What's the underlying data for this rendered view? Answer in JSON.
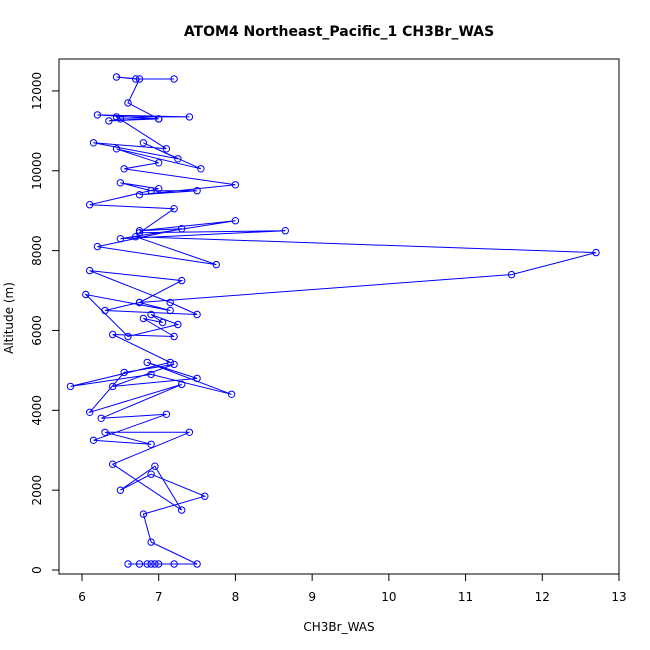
{
  "chart_data": {
    "type": "line",
    "title": "ATOM4 Northeast_Pacific_1 CH3Br_WAS",
    "xlabel": "CH3Br_WAS",
    "ylabel": "Altitude (m)",
    "xlim": [
      5.7,
      13.0
    ],
    "ylim": [
      -100,
      12800
    ],
    "x_ticks": [
      6,
      7,
      8,
      9,
      10,
      11,
      12,
      13
    ],
    "y_ticks": [
      0,
      2000,
      4000,
      6000,
      8000,
      10000,
      12000
    ],
    "grid": false,
    "legend": "none",
    "marker": "open-circle",
    "color": "#0000ff",
    "series": [
      {
        "x": [
          6.6,
          6.75,
          6.9,
          6.85,
          7.0,
          6.95,
          7.2,
          7.5,
          6.9,
          6.8,
          7.6,
          6.9,
          6.5,
          6.95,
          7.3,
          6.4,
          7.4,
          6.3,
          6.9,
          6.15,
          7.1,
          6.25,
          7.3,
          6.1,
          6.55,
          7.2,
          6.4,
          7.5,
          6.85,
          7.95,
          6.9,
          5.85,
          7.15,
          6.4,
          7.2,
          6.8,
          7.05,
          6.9,
          7.25,
          6.6,
          6.05,
          7.15,
          6.75,
          6.3,
          7.5,
          7.15,
          6.1,
          7.3,
          6.75,
          11.6,
          12.7,
          6.7,
          7.75,
          6.2,
          7.3,
          6.75,
          8.0,
          6.5,
          8.65,
          6.75,
          7.2,
          6.1,
          7.0,
          6.5,
          6.9,
          7.5,
          6.75,
          8.0,
          6.55,
          7.0,
          6.45,
          7.55,
          6.8,
          7.25,
          6.15,
          7.1,
          6.45,
          7.4,
          6.2,
          7.0,
          6.35,
          6.5,
          7.0,
          6.6,
          6.75,
          6.45,
          6.7,
          7.2
        ],
        "y": [
          150,
          150,
          150,
          150,
          150,
          150,
          150,
          150,
          700,
          1400,
          1850,
          2400,
          2000,
          2600,
          1500,
          2650,
          3450,
          3450,
          3150,
          3250,
          3900,
          3800,
          4650,
          3950,
          4950,
          5150,
          4600,
          4800,
          5200,
          4400,
          4900,
          4600,
          5200,
          5900,
          5850,
          6300,
          6200,
          6400,
          6150,
          5850,
          6900,
          6500,
          6700,
          6500,
          6400,
          6700,
          7500,
          7250,
          6700,
          7400,
          7950,
          8350,
          7650,
          8100,
          8550,
          8500,
          8750,
          8300,
          8500,
          8450,
          9050,
          9150,
          9550,
          9700,
          9500,
          9500,
          9400,
          9650,
          10050,
          10200,
          10550,
          10050,
          10700,
          10300,
          10700,
          10550,
          11350,
          11350,
          11400,
          11300,
          11250,
          11300,
          11300,
          11700,
          12300,
          12350,
          12300,
          12300
        ]
      }
    ]
  }
}
